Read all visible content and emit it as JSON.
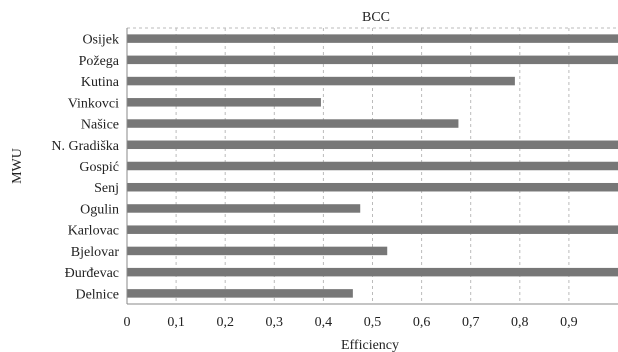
{
  "chart_data": {
    "type": "bar",
    "orientation": "horizontal",
    "title": "BCC",
    "xlabel": "Efficiency",
    "ylabel": "MWU",
    "categories": [
      "Osijek",
      "Požega",
      "Kutina",
      "Vinkovci",
      "Našice",
      "N. Gradiška",
      "Gospić",
      "Senj",
      "Ogulin",
      "Karlovac",
      "Bjelovar",
      "Đurđevac",
      "Delnice"
    ],
    "values": [
      1.0,
      1.0,
      0.79,
      0.395,
      0.675,
      1.0,
      1.0,
      1.0,
      0.475,
      1.0,
      0.53,
      1.0,
      0.46
    ],
    "xlim": [
      0,
      1.0
    ],
    "xticks": [
      "0",
      "0,1",
      "0,2",
      "0,3",
      "0,4",
      "0,5",
      "0,6",
      "0,7",
      "0,8",
      "0,9"
    ],
    "grid": "vertical-dashed",
    "bar_color": "#777777",
    "grid_color": "#bbbbbb"
  }
}
